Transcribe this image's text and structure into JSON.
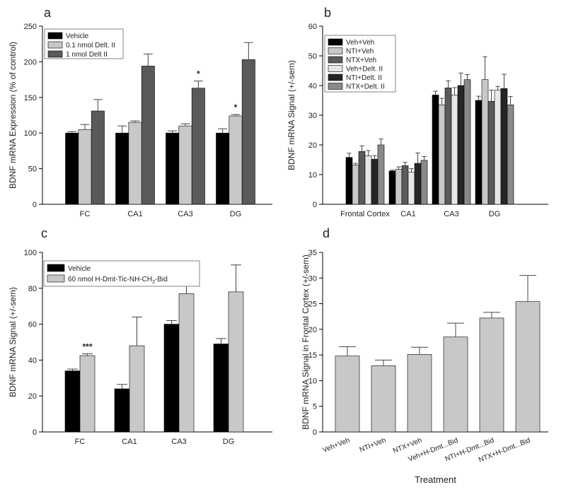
{
  "chart_data": [
    {
      "panel": "a",
      "type": "bar",
      "ylabel": "BDNF mRNA Expression (% of control)",
      "ylim": [
        0,
        250
      ],
      "yticks": [
        0,
        50,
        100,
        150,
        200,
        250
      ],
      "categories": [
        "FC",
        "CA1",
        "CA3",
        "DG"
      ],
      "series": [
        {
          "name": "Vehicle",
          "color": "#000000",
          "values": [
            100,
            100,
            100,
            100
          ],
          "errors": [
            2,
            10,
            3,
            6
          ]
        },
        {
          "name": "0.1 nmol Delt. II",
          "color": "#c8c8c8",
          "values": [
            105,
            115,
            110,
            124
          ],
          "errors": [
            7,
            2,
            3,
            2
          ]
        },
        {
          "name": "1 nmol Delt II",
          "color": "#5a5a5a",
          "values": [
            131,
            194,
            163,
            203
          ],
          "errors": [
            16,
            17,
            10,
            24
          ]
        }
      ],
      "annotations": [
        {
          "text": "*",
          "category": 2,
          "series": 2
        },
        {
          "text": "*",
          "category": 3,
          "series": 1
        }
      ]
    },
    {
      "panel": "b",
      "type": "bar",
      "ylabel": "BDNF mRNA Signal (+/-sem)",
      "ylim": [
        0,
        60
      ],
      "yticks": [
        0,
        10,
        20,
        30,
        40,
        50,
        60
      ],
      "categories": [
        "Frontal Cortex",
        "CA1",
        "CA3",
        "DG"
      ],
      "series": [
        {
          "name": "Veh+Veh",
          "color": "#000000",
          "values": [
            15.8,
            11.2,
            36.8,
            35
          ],
          "errors": [
            1.4,
            0.3,
            1.3,
            1.4
          ]
        },
        {
          "name": "NTI+Veh",
          "color": "#c8c8c8",
          "values": [
            13.2,
            11.8,
            33.5,
            42
          ],
          "errors": [
            0.6,
            0.8,
            2.2,
            7.7
          ]
        },
        {
          "name": "NTX+Veh",
          "color": "#5a5a5a",
          "values": [
            17.8,
            13,
            39.2,
            34.7
          ],
          "errors": [
            1.9,
            1.1,
            2.4,
            3.8
          ]
        },
        {
          "name": "Veh+Delt. II",
          "color": "#e6e6e6",
          "values": [
            16.3,
            10.8,
            36.8,
            38.5
          ],
          "errors": [
            1.8,
            1.2,
            2.5,
            1.2
          ]
        },
        {
          "name": "NTI+Delt. II",
          "color": "#262626",
          "values": [
            15.2,
            13.8,
            40,
            39
          ],
          "errors": [
            1.2,
            3.5,
            4.2,
            4.8
          ]
        },
        {
          "name": "NTX+Delt. II",
          "color": "#8a8a8a",
          "values": [
            20,
            14.8,
            42,
            33.5
          ],
          "errors": [
            2,
            1.3,
            1.7,
            2.8
          ]
        }
      ]
    },
    {
      "panel": "c",
      "type": "bar",
      "ylabel": "BDNF mRNA Signal (+/-sem)",
      "ylim": [
        0,
        100
      ],
      "yticks": [
        0,
        20,
        40,
        60,
        80,
        100
      ],
      "categories": [
        "FC",
        "CA1",
        "CA3",
        "DG"
      ],
      "series": [
        {
          "name": "Vehicle",
          "color": "#000000",
          "values": [
            34,
            24,
            60,
            49
          ],
          "errors": [
            1,
            2.5,
            2,
            3
          ]
        },
        {
          "name": "60 nmol H-Dmt-Tic-NH-CH2-Bid",
          "legend_main": "60 nmol H-Dmt-Tic-NH-CH",
          "legend_sub": "2",
          "legend_tail": "-Bid",
          "color": "#c8c8c8",
          "values": [
            42.5,
            48,
            77,
            78
          ],
          "errors": [
            1,
            16,
            11,
            15
          ]
        }
      ],
      "annotations": [
        {
          "text": "***",
          "category": 0,
          "series": 1
        }
      ]
    },
    {
      "panel": "d",
      "type": "bar",
      "ylabel": "BDNF mRNA Signal in Frontal Cortex (+/-sem)",
      "xlabel": "Treatment",
      "ylim": [
        0,
        35
      ],
      "yticks": [
        0,
        5,
        10,
        15,
        20,
        25,
        30,
        35
      ],
      "categories": [
        "Veh+Veh",
        "NTI+Veh",
        "NTX+Veh",
        "Veh+H-Dmt...Bid",
        "NTI+H-Dmt...Bid",
        "NTX+H-Dmt...Bid"
      ],
      "series": [
        {
          "name": "Treatment",
          "color": "#c8c8c8",
          "values": [
            14.8,
            12.9,
            15.1,
            18.5,
            22.2,
            25.4
          ],
          "errors": [
            1.8,
            1.1,
            1.4,
            2.7,
            1.1,
            5.1
          ]
        }
      ]
    }
  ]
}
